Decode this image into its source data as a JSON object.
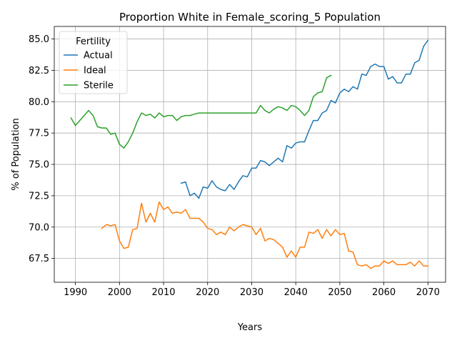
{
  "chart_data": {
    "type": "line",
    "title": "Proportion White in Female_scoring_5 Population",
    "xlabel": "Years",
    "ylabel": "% of Population",
    "xlim": [
      1985.2,
      2074.0
    ],
    "ylim": [
      65.6,
      86.0
    ],
    "xticks": [
      1990,
      2000,
      2010,
      2020,
      2030,
      2040,
      2050,
      2060,
      2070
    ],
    "yticks": [
      67.5,
      70.0,
      72.5,
      75.0,
      77.5,
      80.0,
      82.5,
      85.0
    ],
    "ytick_labels": [
      "67.5",
      "70.0",
      "72.5",
      "75.0",
      "77.5",
      "80.0",
      "82.5",
      "85.0"
    ],
    "grid": true,
    "legend": {
      "title": "Fertility",
      "placement": "top-left"
    },
    "series": [
      {
        "name": "Actual",
        "color": "#1f77b4",
        "x": [
          2014,
          2015,
          2016,
          2017,
          2018,
          2019,
          2020,
          2021,
          2022,
          2023,
          2024,
          2025,
          2026,
          2027,
          2028,
          2029,
          2030,
          2031,
          2032,
          2033,
          2034,
          2035,
          2036,
          2037,
          2038,
          2039,
          2040,
          2041,
          2042,
          2043,
          2044,
          2045,
          2046,
          2047,
          2048,
          2049,
          2050,
          2051,
          2052,
          2053,
          2054,
          2055,
          2056,
          2057,
          2058,
          2059,
          2060,
          2061,
          2062,
          2063,
          2064,
          2065,
          2066,
          2067,
          2068,
          2069,
          2070
        ],
        "values": [
          73.5,
          73.6,
          72.5,
          72.7,
          72.3,
          73.2,
          73.1,
          73.7,
          73.2,
          73.0,
          72.9,
          73.4,
          73.0,
          73.6,
          74.1,
          74.0,
          74.7,
          74.7,
          75.3,
          75.2,
          74.9,
          75.2,
          75.5,
          75.2,
          76.5,
          76.3,
          76.7,
          76.8,
          76.8,
          77.7,
          78.5,
          78.5,
          79.1,
          79.3,
          80.1,
          79.9,
          80.7,
          81.0,
          80.8,
          81.2,
          81.0,
          82.2,
          82.1,
          82.8,
          83.0,
          82.8,
          82.8,
          81.8,
          82.0,
          81.5,
          81.5,
          82.2,
          82.2,
          83.1,
          83.3,
          84.4,
          84.9
        ]
      },
      {
        "name": "Ideal",
        "color": "#ff7f0e",
        "x": [
          1996,
          1997,
          1998,
          1999,
          2000,
          2001,
          2002,
          2003,
          2004,
          2005,
          2006,
          2007,
          2008,
          2009,
          2010,
          2011,
          2012,
          2013,
          2014,
          2015,
          2016,
          2017,
          2018,
          2019,
          2020,
          2021,
          2022,
          2023,
          2024,
          2025,
          2026,
          2027,
          2028,
          2029,
          2030,
          2031,
          2032,
          2033,
          2034,
          2035,
          2036,
          2037,
          2038,
          2039,
          2040,
          2041,
          2042,
          2043,
          2044,
          2045,
          2046,
          2047,
          2048,
          2049,
          2050,
          2051,
          2052,
          2053,
          2054,
          2055,
          2056,
          2057,
          2058,
          2059,
          2060,
          2061,
          2062,
          2063,
          2064,
          2065,
          2066,
          2067,
          2068,
          2069,
          2070
        ],
        "values": [
          69.9,
          70.2,
          70.1,
          70.2,
          68.9,
          68.3,
          68.4,
          69.8,
          69.9,
          71.9,
          70.4,
          71.1,
          70.4,
          72.0,
          71.4,
          71.6,
          71.1,
          71.2,
          71.1,
          71.4,
          70.7,
          70.7,
          70.7,
          70.4,
          69.9,
          69.8,
          69.4,
          69.6,
          69.4,
          70.0,
          69.7,
          70.0,
          70.2,
          70.1,
          70.0,
          69.4,
          69.9,
          68.9,
          69.1,
          69.0,
          68.7,
          68.4,
          67.6,
          68.1,
          67.6,
          68.4,
          68.4,
          69.6,
          69.5,
          69.8,
          69.1,
          69.8,
          69.3,
          69.8,
          69.4,
          69.5,
          68.1,
          68.0,
          67.0,
          66.9,
          67.0,
          66.7,
          66.9,
          66.9,
          67.3,
          67.1,
          67.3,
          67.0,
          67.0,
          67.0,
          67.2,
          66.9,
          67.3,
          66.9,
          66.9
        ]
      },
      {
        "name": "Sterile",
        "color": "#2ca02c",
        "x": [
          1989,
          1990,
          1991,
          1992,
          1993,
          1994,
          1995,
          1996,
          1997,
          1998,
          1999,
          2000,
          2001,
          2002,
          2003,
          2004,
          2005,
          2006,
          2007,
          2008,
          2009,
          2010,
          2011,
          2012,
          2013,
          2014,
          2015,
          2016,
          2017,
          2018,
          2019,
          2020,
          2021,
          2022,
          2023,
          2024,
          2025,
          2026,
          2027,
          2028,
          2029,
          2030,
          2031,
          2032,
          2033,
          2034,
          2035,
          2036,
          2037,
          2038,
          2039,
          2040,
          2041,
          2042,
          2043,
          2044,
          2045,
          2046,
          2047,
          2048
        ],
        "values": [
          78.7,
          78.1,
          78.5,
          78.9,
          79.3,
          78.9,
          78.0,
          77.9,
          77.9,
          77.4,
          77.5,
          76.6,
          76.3,
          76.8,
          77.5,
          78.4,
          79.1,
          78.9,
          79.0,
          78.7,
          79.1,
          78.8,
          78.9,
          78.9,
          78.5,
          78.8,
          78.9,
          78.9,
          79.0,
          79.1,
          79.1,
          79.1,
          79.1,
          79.1,
          79.1,
          79.1,
          79.1,
          79.1,
          79.1,
          79.1,
          79.1,
          79.1,
          79.1,
          79.7,
          79.3,
          79.1,
          79.4,
          79.6,
          79.5,
          79.3,
          79.7,
          79.6,
          79.3,
          78.9,
          79.3,
          80.4,
          80.7,
          80.8,
          81.9,
          82.1
        ]
      }
    ]
  }
}
